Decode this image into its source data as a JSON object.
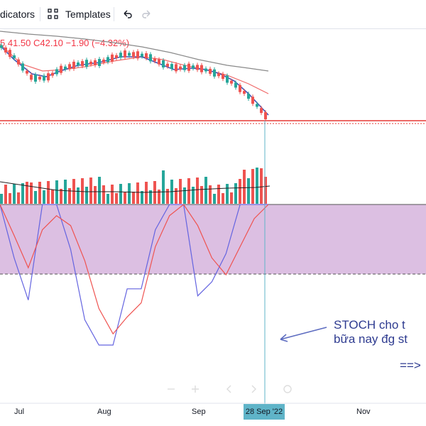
{
  "toolbar": {
    "indicators_label": "dicators",
    "templates_label": "Templates"
  },
  "legend": {
    "ohlc_text": "5 41.50 C42.10 −1.90 (−4.32%)"
  },
  "annotation": {
    "line1": "STOCH  cho t",
    "line2": "bữa nay đg st",
    "line3": "==>"
  },
  "x_axis": {
    "labels": [
      "Jul",
      "Aug",
      "Sep",
      "Nov"
    ],
    "crosshair_label": "28 Sep '22"
  },
  "colors": {
    "up": "#26a69a",
    "down": "#ef5350",
    "stoch_k": "#6464e0",
    "stoch_d": "#ef5350",
    "band_fill": "#dcbfe2",
    "crosshair": "#5fb4c8",
    "support_line": "#e53935",
    "annotation": "#2e3b90"
  },
  "chart_data": {
    "type": "line",
    "title": "",
    "price": {
      "last_close": 42.1,
      "change": -1.9,
      "change_pct": -4.32
    },
    "stochastic": {
      "series": [
        {
          "values": [
            100,
            62,
            32,
            100,
            100,
            68,
            18,
            0,
            0,
            40,
            40,
            82,
            100,
            100,
            35,
            45,
            65,
            100,
            100,
            100
          ]
        },
        {
          "values": [
            100,
            78,
            55,
            82,
            92,
            85,
            60,
            26,
            8,
            20,
            30,
            70,
            92,
            100,
            85,
            62,
            50,
            70,
            90,
            100
          ]
        }
      ]
    }
  }
}
